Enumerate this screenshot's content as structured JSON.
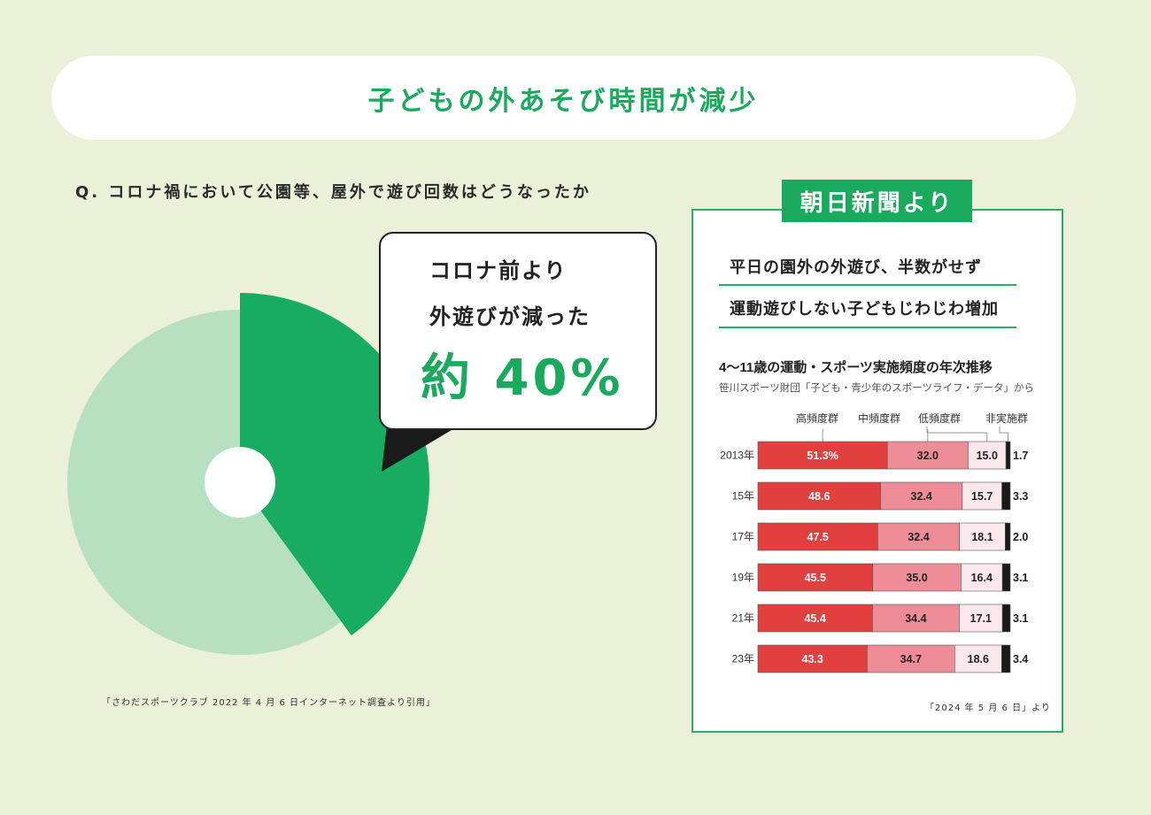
{
  "page": {
    "title": "子どもの外あそび時間が減少",
    "question": "Q. コロナ禍において公園等、屋外で遊び回数はどうなったか",
    "bubble": {
      "line1": "コロナ前より",
      "line2": "外遊びが減った",
      "big": "約 40%"
    },
    "left_source": "「さわだスポーツクラブ 2022 年 4 月 6 日インターネット調査より引用」",
    "news": {
      "tag": "朝日新聞より",
      "headline1": "平日の園外の外遊び、半数がせず",
      "headline2": "運動遊びしない子どもじわじわ増加",
      "source": "「2024 年 5 月 6 日」より"
    },
    "colors": {
      "accent": "#1aaa5e",
      "pie_light": "#b6e0c0",
      "pie_dark": "#18ac61",
      "high": "#e2403f",
      "mid": "#ee8d97",
      "low": "#fbe8ec",
      "none": "#1a1a1a"
    }
  },
  "chart_data": [
    {
      "type": "pie",
      "slices": [
        {
          "value": 40
        },
        {
          "value": 60
        }
      ]
    },
    {
      "type": "bar",
      "stacked": true,
      "orientation": "horizontal",
      "title": "4～11歳の運動・スポーツ実施頻度の年次推移",
      "subtitle": "笹川スポーツ財団「子ども・青少年のスポーツライフ・データ」から",
      "categories": [
        "2013年",
        "15年",
        "17年",
        "19年",
        "21年",
        "23年"
      ],
      "series": [
        {
          "name": "高頻度群",
          "values": [
            51.3,
            48.6,
            47.5,
            45.5,
            45.4,
            43.3
          ]
        },
        {
          "name": "中頻度群",
          "values": [
            32.0,
            32.4,
            32.4,
            35.0,
            34.4,
            34.7
          ]
        },
        {
          "name": "低頻度群",
          "values": [
            15.0,
            15.7,
            18.1,
            16.4,
            17.1,
            18.6
          ]
        },
        {
          "name": "非実施群",
          "values": [
            1.7,
            3.3,
            2.0,
            3.1,
            3.1,
            3.4
          ]
        }
      ],
      "value_labels": [
        [
          "51.3%",
          "32.0",
          "15.0",
          "1.7"
        ],
        [
          "48.6",
          "32.4",
          "15.7",
          "3.3"
        ],
        [
          "47.5",
          "32.4",
          "18.1",
          "2.0"
        ],
        [
          "45.5",
          "35.0",
          "16.4",
          "3.1"
        ],
        [
          "45.4",
          "34.4",
          "17.1",
          "3.1"
        ],
        [
          "43.3",
          "34.7",
          "18.6",
          "3.4"
        ]
      ]
    }
  ]
}
